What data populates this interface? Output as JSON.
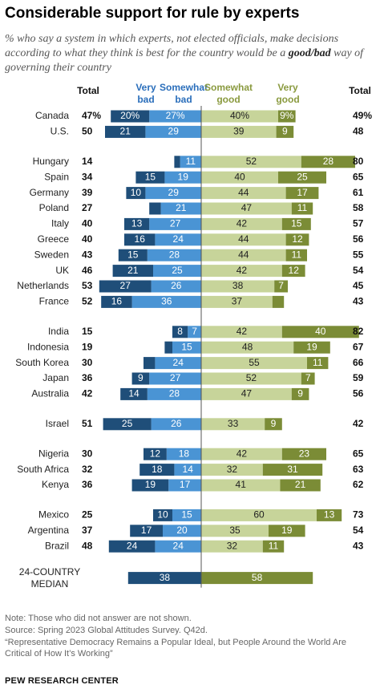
{
  "title": "Considerable support for rule by experts",
  "subtitle_pre": "% who say a system in which experts, not elected officials, make decisions according to what they think is best for the country would be a ",
  "subtitle_bold": "good/bad",
  "subtitle_post": " way of governing their country",
  "headers": {
    "total_left": "Total",
    "very_bad": "Very bad",
    "somewhat_bad": "Somewhat bad",
    "somewhat_good": "Somewhat good",
    "very_good": "Very good",
    "total_right": "Total"
  },
  "colors": {
    "very_bad": "#1f4e79",
    "somewhat_bad": "#4a94d4",
    "somewhat_good": "#c7d49a",
    "very_good": "#7b8c36",
    "header_bad": "#2a6ebb",
    "header_good": "#8a9a3f"
  },
  "chart_data": {
    "type": "bar",
    "stacked": "diverging",
    "series_names": [
      "Very bad",
      "Somewhat bad",
      "Somewhat good",
      "Very good"
    ],
    "rows": [
      {
        "country": "Canada",
        "total_bad": "47%",
        "very_bad": 20,
        "somewhat_bad": 27,
        "somewhat_good": 40,
        "very_good": 9,
        "total_good": "49%",
        "pct": true,
        "group": 0
      },
      {
        "country": "U.S.",
        "total_bad": "50",
        "very_bad": 21,
        "somewhat_bad": 29,
        "somewhat_good": 39,
        "very_good": 9,
        "total_good": "48",
        "group": 0
      },
      {
        "country": "Hungary",
        "total_bad": "14",
        "very_bad": 3,
        "somewhat_bad": 11,
        "somewhat_good": 52,
        "very_good": 28,
        "total_good": "80",
        "group": 1,
        "hide_vb": true
      },
      {
        "country": "Spain",
        "total_bad": "34",
        "very_bad": 15,
        "somewhat_bad": 19,
        "somewhat_good": 40,
        "very_good": 25,
        "total_good": "65",
        "group": 1
      },
      {
        "country": "Germany",
        "total_bad": "39",
        "very_bad": 10,
        "somewhat_bad": 29,
        "somewhat_good": 44,
        "very_good": 17,
        "total_good": "61",
        "group": 1
      },
      {
        "country": "Poland",
        "total_bad": "27",
        "very_bad": 6,
        "somewhat_bad": 21,
        "somewhat_good": 47,
        "very_good": 11,
        "total_good": "58",
        "group": 1,
        "hide_vb": true
      },
      {
        "country": "Italy",
        "total_bad": "40",
        "very_bad": 13,
        "somewhat_bad": 27,
        "somewhat_good": 42,
        "very_good": 15,
        "total_good": "57",
        "group": 1
      },
      {
        "country": "Greece",
        "total_bad": "40",
        "very_bad": 16,
        "somewhat_bad": 24,
        "somewhat_good": 44,
        "very_good": 12,
        "total_good": "56",
        "group": 1
      },
      {
        "country": "Sweden",
        "total_bad": "43",
        "very_bad": 15,
        "somewhat_bad": 28,
        "somewhat_good": 44,
        "very_good": 11,
        "total_good": "55",
        "group": 1
      },
      {
        "country": "UK",
        "total_bad": "46",
        "very_bad": 21,
        "somewhat_bad": 25,
        "somewhat_good": 42,
        "very_good": 12,
        "total_good": "54",
        "group": 1
      },
      {
        "country": "Netherlands",
        "total_bad": "53",
        "very_bad": 27,
        "somewhat_bad": 26,
        "somewhat_good": 38,
        "very_good": 7,
        "total_good": "45",
        "group": 1
      },
      {
        "country": "France",
        "total_bad": "52",
        "very_bad": 16,
        "somewhat_bad": 36,
        "somewhat_good": 37,
        "very_good": 6,
        "total_good": "43",
        "group": 1,
        "hide_vg": true
      },
      {
        "country": "India",
        "total_bad": "15",
        "very_bad": 8,
        "somewhat_bad": 7,
        "somewhat_good": 42,
        "very_good": 40,
        "total_good": "82",
        "group": 2
      },
      {
        "country": "Indonesia",
        "total_bad": "19",
        "very_bad": 4,
        "somewhat_bad": 15,
        "somewhat_good": 48,
        "very_good": 19,
        "total_good": "67",
        "group": 2,
        "hide_vb": true
      },
      {
        "country": "South Korea",
        "total_bad": "30",
        "very_bad": 6,
        "somewhat_bad": 24,
        "somewhat_good": 55,
        "very_good": 11,
        "total_good": "66",
        "group": 2,
        "hide_vb": true
      },
      {
        "country": "Japan",
        "total_bad": "36",
        "very_bad": 9,
        "somewhat_bad": 27,
        "somewhat_good": 52,
        "very_good": 7,
        "total_good": "59",
        "group": 2
      },
      {
        "country": "Australia",
        "total_bad": "42",
        "very_bad": 14,
        "somewhat_bad": 28,
        "somewhat_good": 47,
        "very_good": 9,
        "total_good": "56",
        "group": 2
      },
      {
        "country": "Israel",
        "total_bad": "51",
        "very_bad": 25,
        "somewhat_bad": 26,
        "somewhat_good": 33,
        "very_good": 9,
        "total_good": "42",
        "group": 3
      },
      {
        "country": "Nigeria",
        "total_bad": "30",
        "very_bad": 12,
        "somewhat_bad": 18,
        "somewhat_good": 42,
        "very_good": 23,
        "total_good": "65",
        "group": 4
      },
      {
        "country": "South Africa",
        "total_bad": "32",
        "very_bad": 18,
        "somewhat_bad": 14,
        "somewhat_good": 32,
        "very_good": 31,
        "total_good": "63",
        "group": 4
      },
      {
        "country": "Kenya",
        "total_bad": "36",
        "very_bad": 19,
        "somewhat_bad": 17,
        "somewhat_good": 41,
        "very_good": 21,
        "total_good": "62",
        "group": 4
      },
      {
        "country": "Mexico",
        "total_bad": "25",
        "very_bad": 10,
        "somewhat_bad": 15,
        "somewhat_good": 60,
        "very_good": 13,
        "total_good": "73",
        "group": 5
      },
      {
        "country": "Argentina",
        "total_bad": "37",
        "very_bad": 17,
        "somewhat_bad": 20,
        "somewhat_good": 35,
        "very_good": 19,
        "total_good": "54",
        "group": 5
      },
      {
        "country": "Brazil",
        "total_bad": "48",
        "very_bad": 24,
        "somewhat_bad": 24,
        "somewhat_good": 32,
        "very_good": 11,
        "total_good": "43",
        "group": 5
      }
    ],
    "median": {
      "label_line1": "24-COUNTRY",
      "label_line2": "MEDIAN",
      "bad": 38,
      "good": 58
    }
  },
  "notes": {
    "note": "Note: Those who did not answer are not shown.",
    "source": "Source: Spring 2023 Global Attitudes Survey. Q42d.",
    "report_line1": "“Representative Democracy Remains a Popular Ideal, but People Around the World Are",
    "report_line2": "Critical of How It’s Working”",
    "brand": "PEW RESEARCH CENTER"
  }
}
